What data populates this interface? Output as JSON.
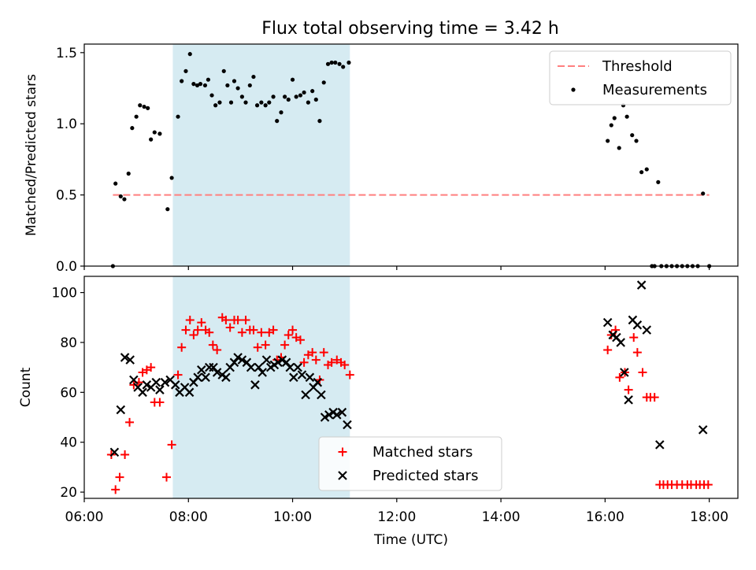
{
  "title": "Flux total observing time = 3.42 h",
  "colors": {
    "shade": "#add8e6",
    "threshold": "#ff7f7f",
    "measurement": "#000000",
    "matched": "#ff0000",
    "predicted": "#000000"
  },
  "chart_data": [
    {
      "type": "scatter",
      "panel": "top",
      "ylabel": "Matched/Predicted stars",
      "xlabel": "",
      "x_unit": "hours UTC",
      "xlim": [
        6.0,
        18.55
      ],
      "ylim": [
        0,
        1.56
      ],
      "yticks": [
        0.0,
        0.5,
        1.0,
        1.5
      ],
      "ytick_labels": [
        "0.0",
        "0.5",
        "1.0",
        "1.5"
      ],
      "xticks": [
        6,
        8,
        10,
        12,
        14,
        16,
        18
      ],
      "shaded_interval": [
        7.7,
        11.1
      ],
      "grid": false,
      "legend_position": "top-right",
      "legend": [
        "Threshold",
        "Measurements"
      ],
      "threshold": {
        "name": "Threshold",
        "value": 0.5,
        "x_range": [
          6.55,
          18.0
        ]
      },
      "series": [
        {
          "name": "Measurements",
          "marker": "dot",
          "points": [
            [
              6.55,
              0.0
            ],
            [
              6.6,
              0.58
            ],
            [
              6.7,
              0.49
            ],
            [
              6.77,
              0.47
            ],
            [
              6.85,
              0.65
            ],
            [
              6.92,
              0.97
            ],
            [
              7.0,
              1.05
            ],
            [
              7.07,
              1.13
            ],
            [
              7.15,
              1.12
            ],
            [
              7.22,
              1.11
            ],
            [
              7.28,
              0.89
            ],
            [
              7.35,
              0.94
            ],
            [
              7.45,
              0.93
            ],
            [
              7.6,
              0.4
            ],
            [
              7.68,
              0.62
            ],
            [
              7.8,
              1.05
            ],
            [
              7.87,
              1.3
            ],
            [
              7.95,
              1.37
            ],
            [
              8.03,
              1.49
            ],
            [
              8.1,
              1.28
            ],
            [
              8.17,
              1.27
            ],
            [
              8.23,
              1.28
            ],
            [
              8.32,
              1.27
            ],
            [
              8.38,
              1.31
            ],
            [
              8.45,
              1.2
            ],
            [
              8.52,
              1.13
            ],
            [
              8.6,
              1.15
            ],
            [
              8.68,
              1.37
            ],
            [
              8.75,
              1.27
            ],
            [
              8.82,
              1.15
            ],
            [
              8.88,
              1.3
            ],
            [
              8.95,
              1.25
            ],
            [
              9.03,
              1.19
            ],
            [
              9.1,
              1.15
            ],
            [
              9.18,
              1.27
            ],
            [
              9.25,
              1.33
            ],
            [
              9.32,
              1.13
            ],
            [
              9.4,
              1.15
            ],
            [
              9.48,
              1.13
            ],
            [
              9.55,
              1.15
            ],
            [
              9.63,
              1.19
            ],
            [
              9.7,
              1.02
            ],
            [
              9.78,
              1.08
            ],
            [
              9.85,
              1.19
            ],
            [
              9.92,
              1.17
            ],
            [
              10.0,
              1.31
            ],
            [
              10.07,
              1.19
            ],
            [
              10.15,
              1.2
            ],
            [
              10.22,
              1.22
            ],
            [
              10.3,
              1.15
            ],
            [
              10.38,
              1.23
            ],
            [
              10.45,
              1.17
            ],
            [
              10.52,
              1.02
            ],
            [
              10.6,
              1.29
            ],
            [
              10.68,
              1.42
            ],
            [
              10.75,
              1.43
            ],
            [
              10.82,
              1.43
            ],
            [
              10.9,
              1.42
            ],
            [
              10.97,
              1.4
            ],
            [
              11.08,
              1.43
            ],
            [
              16.05,
              0.88
            ],
            [
              16.12,
              0.99
            ],
            [
              16.18,
              1.04
            ],
            [
              16.27,
              0.83
            ],
            [
              16.35,
              1.13
            ],
            [
              16.42,
              1.05
            ],
            [
              16.52,
              0.92
            ],
            [
              16.6,
              0.88
            ],
            [
              16.7,
              0.66
            ],
            [
              16.8,
              0.68
            ],
            [
              16.9,
              0.0
            ],
            [
              16.95,
              0.0
            ],
            [
              17.02,
              0.59
            ],
            [
              17.08,
              0.0
            ],
            [
              17.18,
              0.0
            ],
            [
              17.28,
              0.0
            ],
            [
              17.38,
              0.0
            ],
            [
              17.48,
              0.0
            ],
            [
              17.58,
              0.0
            ],
            [
              17.68,
              0.0
            ],
            [
              17.78,
              0.0
            ],
            [
              17.88,
              0.51
            ],
            [
              18.0,
              0.0
            ]
          ]
        }
      ]
    },
    {
      "type": "scatter",
      "panel": "bottom",
      "ylabel": "Count",
      "xlabel": "Time (UTC)",
      "x_unit": "hours UTC",
      "xlim": [
        6.0,
        18.55
      ],
      "ylim": [
        17.5,
        106.5
      ],
      "yticks": [
        20,
        40,
        60,
        80,
        100
      ],
      "ytick_labels": [
        "20",
        "40",
        "60",
        "80",
        "100"
      ],
      "xticks": [
        6,
        8,
        10,
        12,
        14,
        16,
        18
      ],
      "xtick_labels": [
        "06:00",
        "08:00",
        "10:00",
        "12:00",
        "14:00",
        "16:00",
        "18:00"
      ],
      "shaded_interval": [
        7.7,
        11.1
      ],
      "grid": false,
      "legend_position": "lower-center",
      "legend": [
        "Matched stars",
        "Predicted stars"
      ],
      "series": [
        {
          "name": "Matched stars",
          "marker": "plus",
          "points": [
            [
              6.52,
              35
            ],
            [
              6.6,
              21
            ],
            [
              6.68,
              26
            ],
            [
              6.78,
              35
            ],
            [
              6.87,
              48
            ],
            [
              6.95,
              63
            ],
            [
              7.05,
              64
            ],
            [
              7.12,
              68
            ],
            [
              7.2,
              69
            ],
            [
              7.28,
              70
            ],
            [
              7.35,
              56
            ],
            [
              7.45,
              56
            ],
            [
              7.58,
              26
            ],
            [
              7.68,
              39
            ],
            [
              7.8,
              67
            ],
            [
              7.87,
              78
            ],
            [
              7.95,
              85
            ],
            [
              8.03,
              89
            ],
            [
              8.1,
              83
            ],
            [
              8.18,
              85
            ],
            [
              8.25,
              88
            ],
            [
              8.33,
              85
            ],
            [
              8.4,
              84
            ],
            [
              8.47,
              79
            ],
            [
              8.55,
              77
            ],
            [
              8.65,
              90
            ],
            [
              8.72,
              89
            ],
            [
              8.8,
              86
            ],
            [
              8.88,
              89
            ],
            [
              8.95,
              89
            ],
            [
              9.03,
              84
            ],
            [
              9.1,
              89
            ],
            [
              9.18,
              85
            ],
            [
              9.25,
              85
            ],
            [
              9.33,
              78
            ],
            [
              9.4,
              84
            ],
            [
              9.48,
              79
            ],
            [
              9.55,
              84
            ],
            [
              9.63,
              85
            ],
            [
              9.7,
              73
            ],
            [
              9.78,
              74
            ],
            [
              9.85,
              79
            ],
            [
              9.92,
              83
            ],
            [
              10.0,
              85
            ],
            [
              10.07,
              82
            ],
            [
              10.15,
              81
            ],
            [
              10.22,
              72
            ],
            [
              10.3,
              75
            ],
            [
              10.38,
              76
            ],
            [
              10.45,
              73
            ],
            [
              10.52,
              65
            ],
            [
              10.6,
              76
            ],
            [
              10.68,
              71
            ],
            [
              10.75,
              72
            ],
            [
              10.85,
              73
            ],
            [
              10.93,
              72
            ],
            [
              11.0,
              71
            ],
            [
              11.1,
              67
            ],
            [
              16.05,
              77
            ],
            [
              16.12,
              83
            ],
            [
              16.2,
              85
            ],
            [
              16.28,
              66
            ],
            [
              16.38,
              68
            ],
            [
              16.45,
              61
            ],
            [
              16.55,
              82
            ],
            [
              16.62,
              76
            ],
            [
              16.72,
              68
            ],
            [
              16.8,
              58
            ],
            [
              16.87,
              58
            ],
            [
              16.95,
              58
            ],
            [
              17.05,
              23
            ],
            [
              17.12,
              23
            ],
            [
              17.2,
              23
            ],
            [
              17.28,
              23
            ],
            [
              17.38,
              23
            ],
            [
              17.48,
              23
            ],
            [
              17.58,
              23
            ],
            [
              17.65,
              23
            ],
            [
              17.75,
              23
            ],
            [
              17.82,
              23
            ],
            [
              17.9,
              23
            ],
            [
              17.98,
              23
            ]
          ]
        },
        {
          "name": "Predicted stars",
          "marker": "x",
          "points": [
            [
              6.58,
              36
            ],
            [
              6.7,
              53
            ],
            [
              6.78,
              74
            ],
            [
              6.88,
              73
            ],
            [
              6.95,
              65
            ],
            [
              7.03,
              62
            ],
            [
              7.12,
              60
            ],
            [
              7.2,
              63
            ],
            [
              7.28,
              62
            ],
            [
              7.38,
              64
            ],
            [
              7.45,
              61
            ],
            [
              7.55,
              64
            ],
            [
              7.65,
              65
            ],
            [
              7.75,
              63
            ],
            [
              7.83,
              60
            ],
            [
              7.93,
              62
            ],
            [
              8.02,
              60
            ],
            [
              8.1,
              64
            ],
            [
              8.18,
              66
            ],
            [
              8.25,
              69
            ],
            [
              8.33,
              66
            ],
            [
              8.4,
              70
            ],
            [
              8.48,
              70
            ],
            [
              8.55,
              68
            ],
            [
              8.65,
              67
            ],
            [
              8.72,
              66
            ],
            [
              8.8,
              70
            ],
            [
              8.88,
              72
            ],
            [
              8.95,
              74
            ],
            [
              9.03,
              73
            ],
            [
              9.12,
              72
            ],
            [
              9.2,
              70
            ],
            [
              9.28,
              63
            ],
            [
              9.35,
              70
            ],
            [
              9.42,
              68
            ],
            [
              9.5,
              73
            ],
            [
              9.58,
              70
            ],
            [
              9.65,
              71
            ],
            [
              9.72,
              72
            ],
            [
              9.8,
              73
            ],
            [
              9.88,
              72
            ],
            [
              9.95,
              70
            ],
            [
              10.02,
              66
            ],
            [
              10.1,
              70
            ],
            [
              10.18,
              67
            ],
            [
              10.25,
              59
            ],
            [
              10.33,
              66
            ],
            [
              10.4,
              62
            ],
            [
              10.48,
              64
            ],
            [
              10.55,
              59
            ],
            [
              10.62,
              50
            ],
            [
              10.7,
              51
            ],
            [
              10.78,
              52
            ],
            [
              10.85,
              51
            ],
            [
              10.95,
              52
            ],
            [
              11.05,
              47
            ],
            [
              16.05,
              88
            ],
            [
              16.15,
              83
            ],
            [
              16.22,
              82
            ],
            [
              16.3,
              80
            ],
            [
              16.37,
              68
            ],
            [
              16.45,
              57
            ],
            [
              16.53,
              89
            ],
            [
              16.62,
              87
            ],
            [
              16.7,
              103
            ],
            [
              16.8,
              85
            ],
            [
              17.05,
              39
            ],
            [
              17.88,
              45
            ]
          ]
        }
      ]
    }
  ]
}
